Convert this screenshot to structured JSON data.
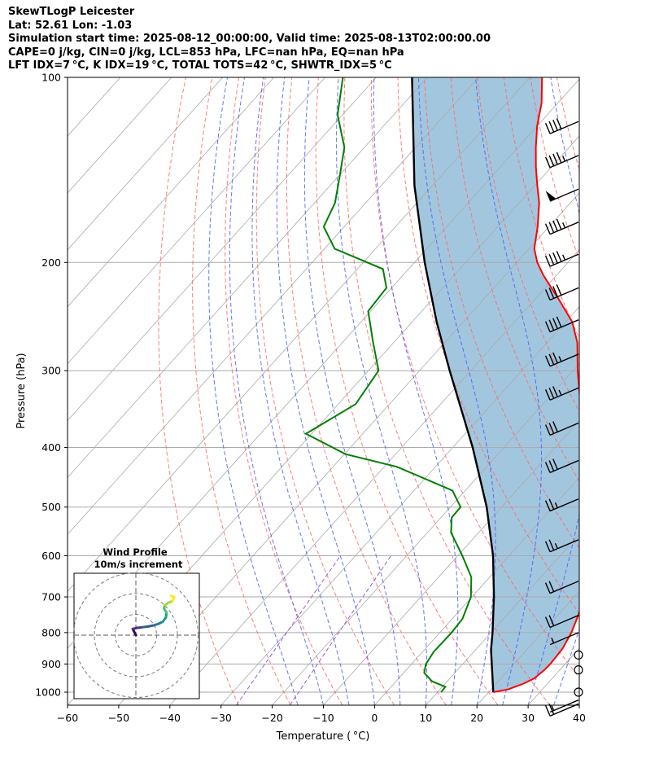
{
  "header": {
    "line1": "SkewTLogP Leicester",
    "line2": "Lat: 52.61   Lon: -1.03",
    "line3": "Simulation start time: 2025-08-12_00:00:00, Valid time: 2025-08-13T02:00:00.00",
    "line4": "CAPE=0 j/kg, CIN=0 j/kg, LCL=853 hPa, LFC=nan hPa, EQ=nan hPa",
    "line5": "LFT IDX=7 °C, K IDX=19 °C, TOTAL TOTS=42 °C, SHWTR_IDX=5 °C"
  },
  "colors": {
    "temperature": "#ff0000",
    "dewpoint": "#008000",
    "parcel": "#000000",
    "shading": "#a3c6df",
    "dry_adiabat": "#ff6666",
    "moist_adiabat": "#4a5cf2",
    "mixing_ratio": "#9d5ad1",
    "isotherm": "#aaaaaa"
  },
  "chart_data": {
    "type": "skewt",
    "xlabel": "Temperature ( °C)",
    "ylabel": "Pressure (hPa)",
    "xlim": [
      -60,
      40
    ],
    "ylim": [
      1050,
      100
    ],
    "x_ticks": [
      -60,
      -50,
      -40,
      -30,
      -20,
      -10,
      0,
      10,
      20,
      30,
      40
    ],
    "x_tick_labels": [
      "−60",
      "−50",
      "−40",
      "−30",
      "−20",
      "−10",
      "0",
      "10",
      "20",
      "30",
      "40"
    ],
    "y_ticks": [
      100,
      200,
      300,
      400,
      500,
      600,
      700,
      800,
      900,
      1000
    ],
    "y_tick_labels": [
      "100",
      "200",
      "300",
      "400",
      "500",
      "600",
      "700",
      "800",
      "900",
      "1000"
    ],
    "temperature_profile": {
      "name": "Temperature",
      "points": [
        [
          1000,
          20.9
        ],
        [
          990,
          23.3
        ],
        [
          970,
          25.2
        ],
        [
          950,
          26.5
        ],
        [
          920,
          27.0
        ],
        [
          900,
          27.1
        ],
        [
          850,
          26.8
        ],
        [
          800,
          25.7
        ],
        [
          750,
          24.0
        ],
        [
          700,
          22.0
        ],
        [
          650,
          18.8
        ],
        [
          600,
          14.8
        ],
        [
          550,
          10.3
        ],
        [
          500,
          5.6
        ],
        [
          450,
          0.6
        ],
        [
          400,
          -5.1
        ],
        [
          350,
          -11.2
        ],
        [
          300,
          -19.1
        ],
        [
          270,
          -24.1
        ],
        [
          250,
          -28.7
        ],
        [
          230,
          -35.2
        ],
        [
          210,
          -42.5
        ],
        [
          200,
          -46.0
        ],
        [
          190,
          -49.0
        ],
        [
          175,
          -52.2
        ],
        [
          160,
          -56.1
        ],
        [
          150,
          -59.5
        ],
        [
          140,
          -63.0
        ],
        [
          130,
          -66.5
        ],
        [
          120,
          -70.0
        ],
        [
          110,
          -73.2
        ],
        [
          100,
          -77.6
        ]
      ]
    },
    "dewpoint_profile": {
      "name": "Dewpoint",
      "points": [
        [
          1000,
          10.7
        ],
        [
          980,
          10.6
        ],
        [
          960,
          7.0
        ],
        [
          930,
          4.0
        ],
        [
          900,
          2.8
        ],
        [
          860,
          2.2
        ],
        [
          800,
          2.3
        ],
        [
          760,
          2.0
        ],
        [
          700,
          -0.2
        ],
        [
          650,
          -3.6
        ],
        [
          600,
          -9.1
        ],
        [
          550,
          -15.4
        ],
        [
          520,
          -17.9
        ],
        [
          500,
          -18.0
        ],
        [
          470,
          -22.5
        ],
        [
          430,
          -37.5
        ],
        [
          410,
          -49.8
        ],
        [
          380,
          -61.1
        ],
        [
          340,
          -56.6
        ],
        [
          300,
          -58.0
        ],
        [
          270,
          -64.0
        ],
        [
          240,
          -70.5
        ],
        [
          220,
          -71.0
        ],
        [
          205,
          -75.0
        ],
        [
          190,
          -88.0
        ],
        [
          175,
          -94.0
        ],
        [
          160,
          -96.0
        ],
        [
          145,
          -99.7
        ],
        [
          130,
          -103.9
        ],
        [
          115,
          -111.0
        ],
        [
          100,
          -116.5
        ]
      ]
    },
    "parcel_profile": {
      "name": "Parcel",
      "points": [
        [
          1000,
          20.9
        ],
        [
          853,
          13.0
        ],
        [
          800,
          10.3
        ],
        [
          700,
          4.3
        ],
        [
          600,
          -3.1
        ],
        [
          500,
          -12.9
        ],
        [
          400,
          -26.1
        ],
        [
          300,
          -44.1
        ],
        [
          250,
          -55.2
        ],
        [
          200,
          -68.0
        ],
        [
          150,
          -83.5
        ],
        [
          100,
          -103.0
        ]
      ]
    },
    "shading": "between temperature and parcel",
    "wind_barbs": {
      "units": "kt",
      "levels": [
        {
          "p": 1045,
          "speed": 20
        },
        {
          "p": 1030,
          "speed": 5
        },
        {
          "p": 1000,
          "speed": 0
        },
        {
          "p": 920,
          "speed": 0
        },
        {
          "p": 870,
          "speed": 0
        },
        {
          "p": 800,
          "speed": 5
        },
        {
          "p": 750,
          "speed": 20
        },
        {
          "p": 660,
          "speed": 20
        },
        {
          "p": 565,
          "speed": 25
        },
        {
          "p": 485,
          "speed": 25
        },
        {
          "p": 420,
          "speed": 30
        },
        {
          "p": 365,
          "speed": 30
        },
        {
          "p": 320,
          "speed": 35
        },
        {
          "p": 282,
          "speed": 35
        },
        {
          "p": 248,
          "speed": 40
        },
        {
          "p": 220,
          "speed": 40
        },
        {
          "p": 194,
          "speed": 45
        },
        {
          "p": 172,
          "speed": 45
        },
        {
          "p": 152,
          "speed": 50
        },
        {
          "p": 134,
          "speed": 45
        },
        {
          "p": 118,
          "speed": 40
        }
      ]
    },
    "hodograph": {
      "title_line1": "Wind Profile",
      "title_line2": "10m/s increment",
      "rings_ms": [
        10,
        20,
        30
      ],
      "points": [
        [
          0,
          0
        ],
        [
          -1,
          2
        ],
        [
          -1.5,
          3
        ],
        [
          0.5,
          3.5
        ],
        [
          3,
          3.8
        ],
        [
          6,
          4.2
        ],
        [
          9,
          4.8
        ],
        [
          11,
          5.5
        ],
        [
          13,
          6.5
        ],
        [
          14.5,
          8.5
        ],
        [
          14.8,
          10.8
        ],
        [
          13.6,
          12.8
        ],
        [
          13.8,
          14.3
        ],
        [
          15.6,
          15.6
        ],
        [
          17.6,
          16.4
        ],
        [
          18.5,
          18.3
        ],
        [
          17.0,
          19.0
        ]
      ]
    }
  }
}
